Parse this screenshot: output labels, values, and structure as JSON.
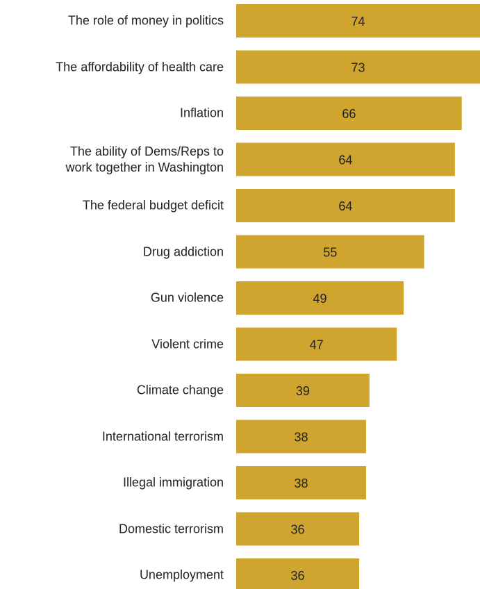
{
  "chart_data": {
    "type": "bar",
    "orientation": "horizontal",
    "categories": [
      "The role of money in politics",
      "The affordability of health care",
      "Inflation",
      "The ability of Dems/Reps to\nwork together in Washington",
      "The federal budget deficit",
      "Drug addiction",
      "Gun violence",
      "Violent crime",
      "Climate change",
      "International terrorism",
      "Illegal immigration",
      "Domestic terrorism",
      "Unemployment"
    ],
    "values": [
      74,
      73,
      66,
      64,
      64,
      55,
      49,
      47,
      39,
      38,
      38,
      36,
      36
    ],
    "color": "#cfa52f"
  }
}
